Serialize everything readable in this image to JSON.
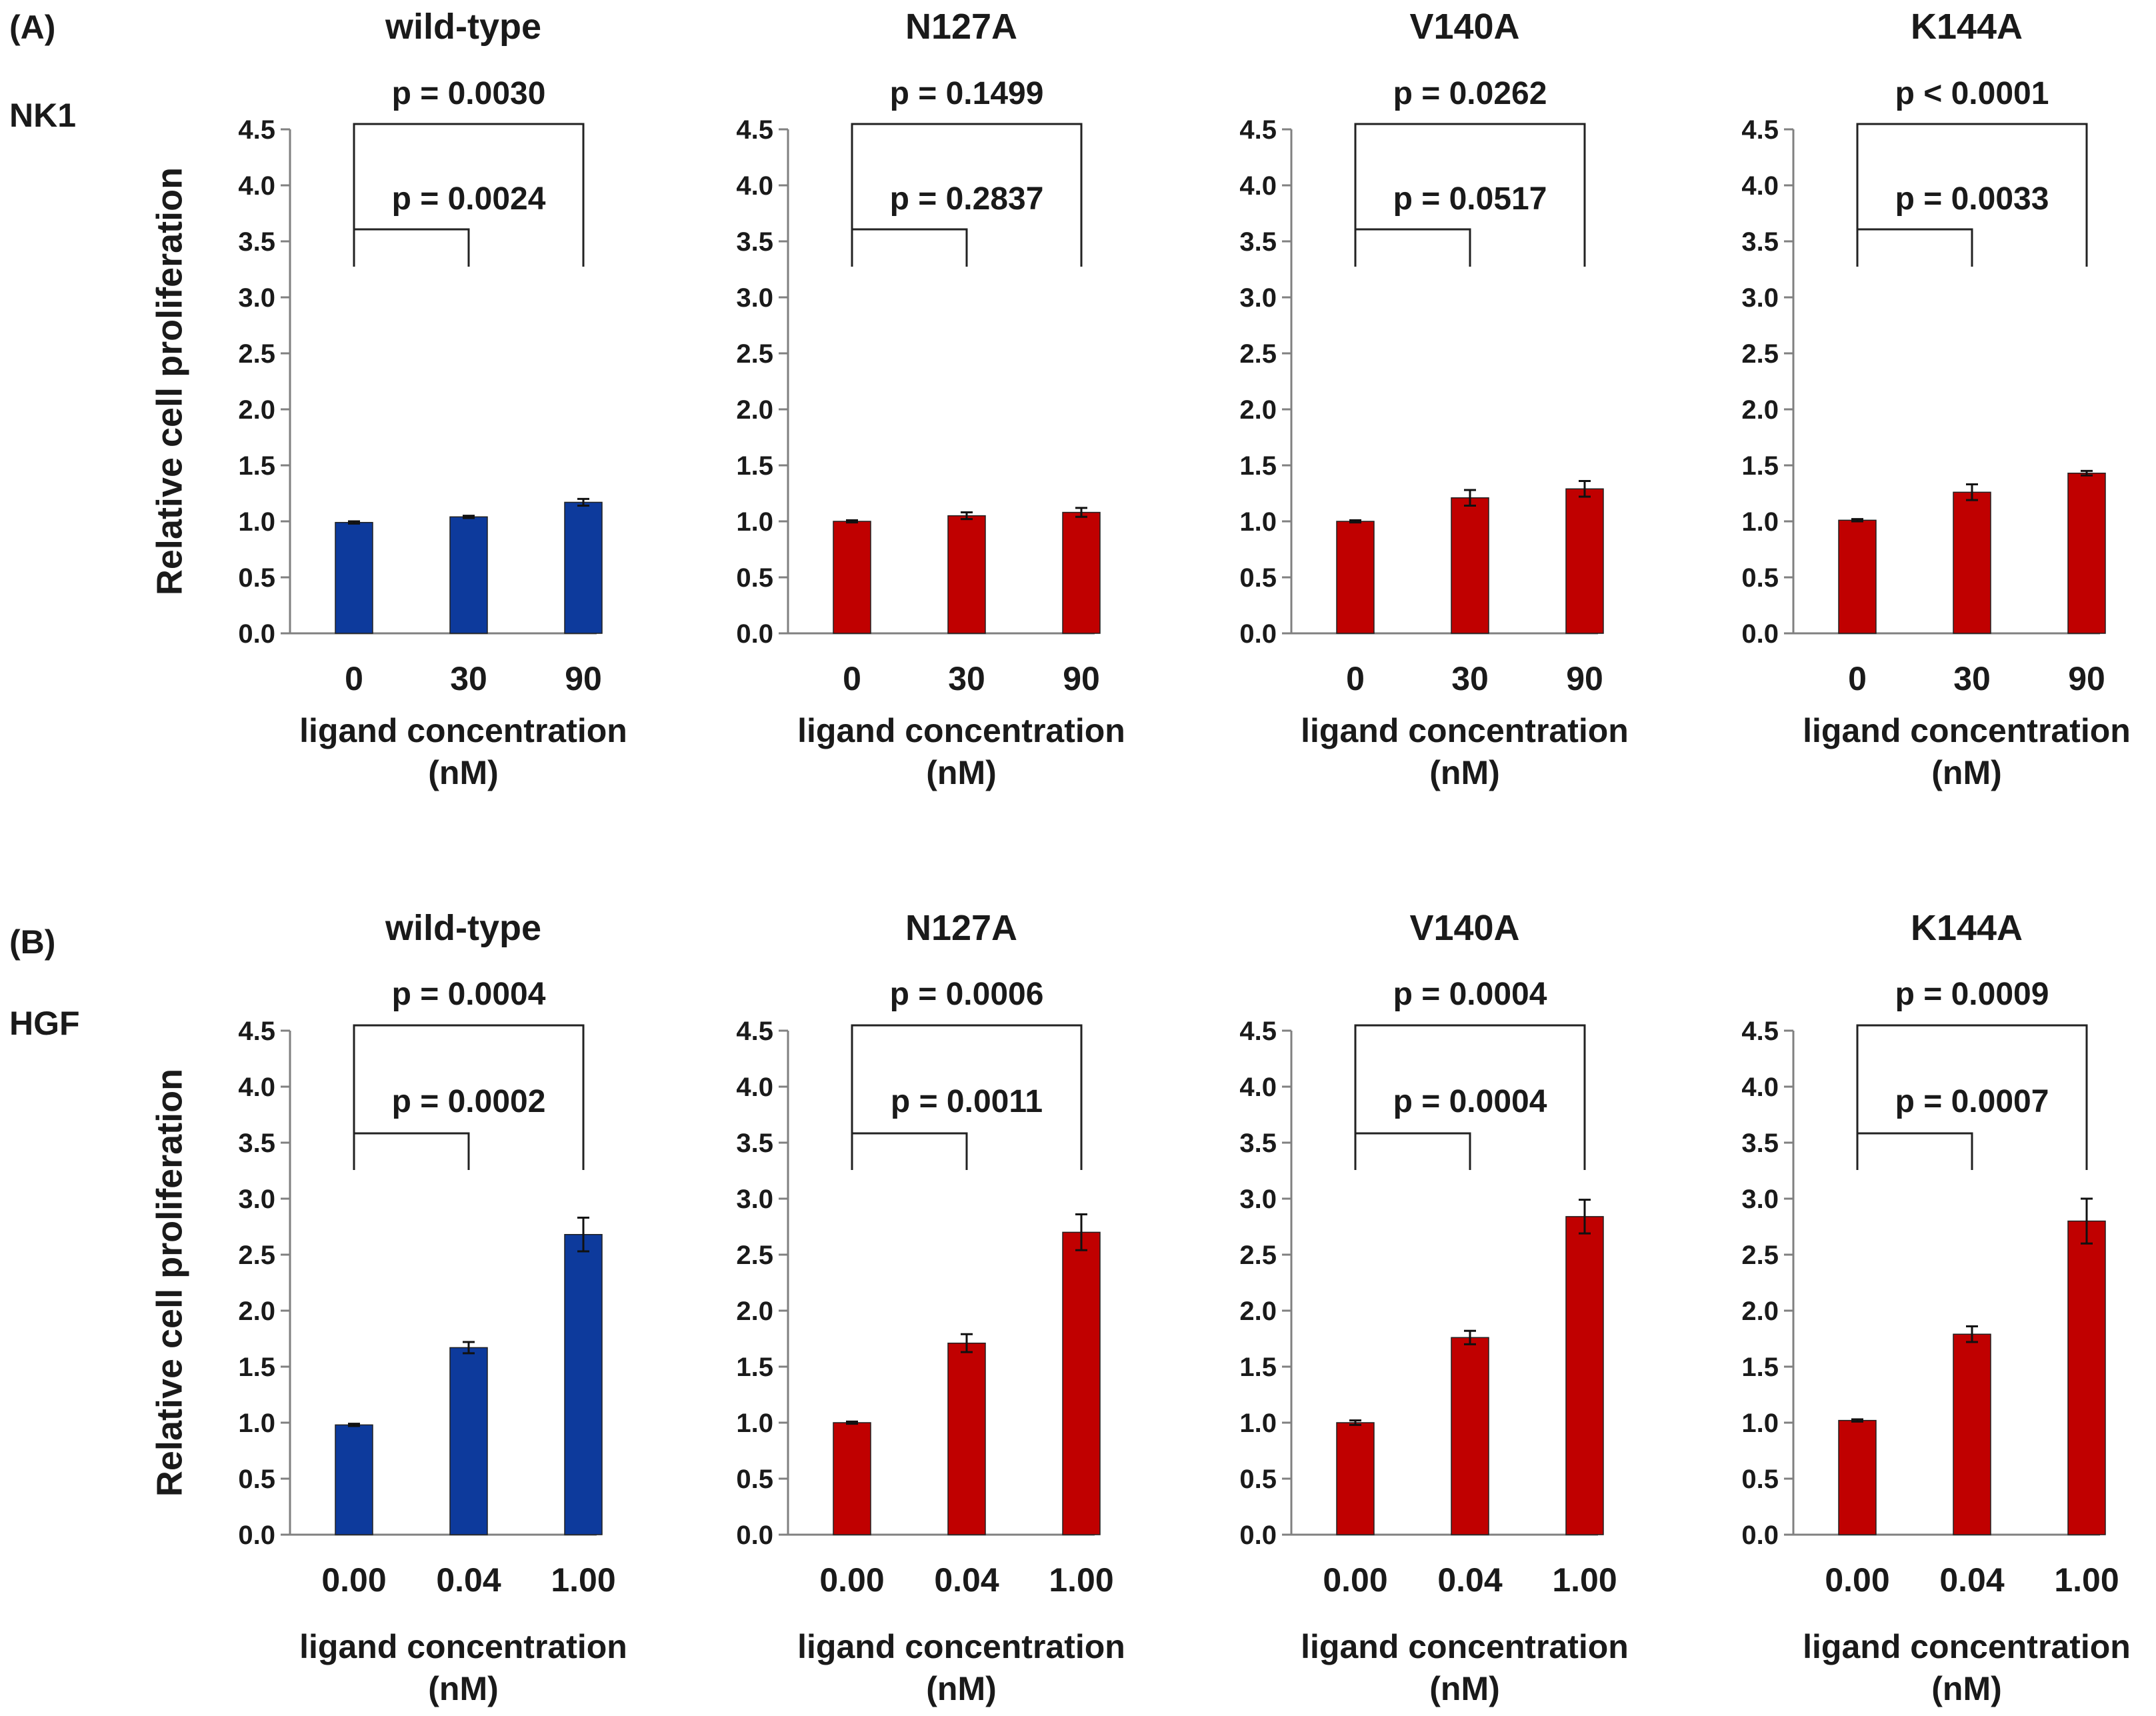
{
  "panels": [
    {
      "letter": "(A)",
      "ligand": "NK1",
      "ylabel": "Relative cell proliferation",
      "xlabel_line1": "ligand concentration",
      "xlabel_line2": "(nM)",
      "categories": [
        "0",
        "30",
        "90"
      ]
    },
    {
      "letter": "(B)",
      "ligand": "HGF",
      "ylabel": "Relative cell proliferation",
      "xlabel_line1": "ligand concentration",
      "xlabel_line2": "(nM)",
      "categories": [
        "0.00",
        "0.04",
        "1.00"
      ]
    }
  ],
  "y_ticks": [
    "0.0",
    "0.5",
    "1.0",
    "1.5",
    "2.0",
    "2.5",
    "3.0",
    "3.5",
    "4.0",
    "4.5"
  ],
  "colors": {
    "wild_type": "#0d3a9c",
    "mutant": "#c00000",
    "axis": "#808080",
    "text": "#1a1a1a"
  },
  "chart_data": [
    {
      "type": "bar",
      "panel": "A",
      "title": "wild-type",
      "color": "#0d3a9c",
      "categories": [
        "0",
        "30",
        "90"
      ],
      "values": [
        0.99,
        1.04,
        1.17
      ],
      "errors": [
        0.01,
        0.01,
        0.03
      ],
      "ylim": [
        0,
        4.5
      ],
      "p_short": "p = 0.0024",
      "p_long": "p = 0.0030"
    },
    {
      "type": "bar",
      "panel": "A",
      "title": "N127A",
      "color": "#c00000",
      "categories": [
        "0",
        "30",
        "90"
      ],
      "values": [
        1.0,
        1.05,
        1.08
      ],
      "errors": [
        0.01,
        0.03,
        0.04
      ],
      "ylim": [
        0,
        4.5
      ],
      "p_short": "p = 0.2837",
      "p_long": "p = 0.1499"
    },
    {
      "type": "bar",
      "panel": "A",
      "title": "V140A",
      "color": "#c00000",
      "categories": [
        "0",
        "30",
        "90"
      ],
      "values": [
        1.0,
        1.21,
        1.29
      ],
      "errors": [
        0.01,
        0.07,
        0.07
      ],
      "ylim": [
        0,
        4.5
      ],
      "p_short": "p = 0.0517",
      "p_long": "p = 0.0262"
    },
    {
      "type": "bar",
      "panel": "A",
      "title": "K144A",
      "color": "#c00000",
      "categories": [
        "0",
        "30",
        "90"
      ],
      "values": [
        1.01,
        1.26,
        1.43
      ],
      "errors": [
        0.01,
        0.07,
        0.02
      ],
      "ylim": [
        0,
        4.5
      ],
      "p_short": "p = 0.0033",
      "p_long": "p < 0.0001"
    },
    {
      "type": "bar",
      "panel": "B",
      "title": "wild-type",
      "color": "#0d3a9c",
      "categories": [
        "0.00",
        "0.04",
        "1.00"
      ],
      "values": [
        0.98,
        1.67,
        2.68
      ],
      "errors": [
        0.01,
        0.05,
        0.15
      ],
      "ylim": [
        0,
        4.5
      ],
      "p_short": "p = 0.0002",
      "p_long": "p = 0.0004"
    },
    {
      "type": "bar",
      "panel": "B",
      "title": "N127A",
      "color": "#c00000",
      "categories": [
        "0.00",
        "0.04",
        "1.00"
      ],
      "values": [
        1.0,
        1.71,
        2.7
      ],
      "errors": [
        0.01,
        0.08,
        0.16
      ],
      "ylim": [
        0,
        4.5
      ],
      "p_short": "p = 0.0011",
      "p_long": "p = 0.0006"
    },
    {
      "type": "bar",
      "panel": "B",
      "title": "V140A",
      "color": "#c00000",
      "categories": [
        "0.00",
        "0.04",
        "1.00"
      ],
      "values": [
        1.0,
        1.76,
        2.84
      ],
      "errors": [
        0.02,
        0.06,
        0.15
      ],
      "ylim": [
        0,
        4.5
      ],
      "p_short": "p = 0.0004",
      "p_long": "p = 0.0004"
    },
    {
      "type": "bar",
      "panel": "B",
      "title": "K144A",
      "color": "#c00000",
      "categories": [
        "0.00",
        "0.04",
        "1.00"
      ],
      "values": [
        1.02,
        1.79,
        2.8
      ],
      "errors": [
        0.01,
        0.07,
        0.2
      ],
      "ylim": [
        0,
        4.5
      ],
      "p_short": "p = 0.0007",
      "p_long": "p = 0.0009"
    }
  ]
}
